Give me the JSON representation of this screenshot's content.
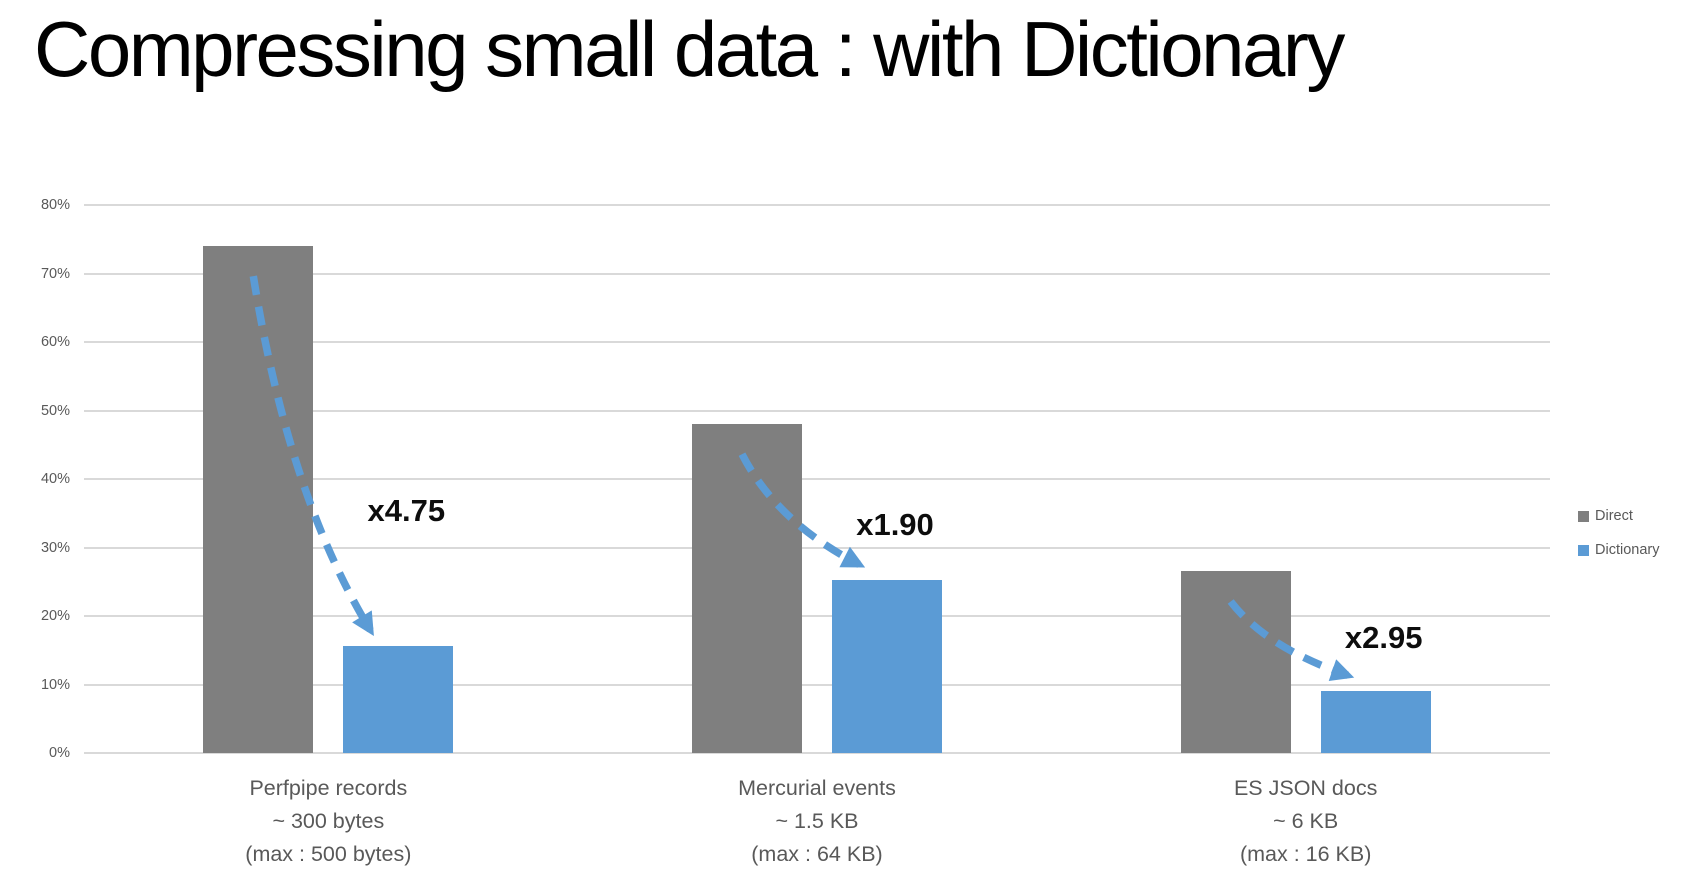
{
  "title": "Compressing small data : with Dictionary",
  "colors": {
    "background": "#ffffff",
    "title_text": "#000000",
    "gridline": "#d9d9d9",
    "axis_text": "#595959",
    "category_text": "#595959",
    "annotation_text": "#0d0d0d",
    "legend_text": "#595959",
    "direct_bar": "#7f7f7f",
    "dictionary_bar": "#5b9bd5",
    "arrow": "#5b9bd5"
  },
  "legend": {
    "position": "right",
    "items": [
      {
        "label": "Direct",
        "color": "#7f7f7f"
      },
      {
        "label": "Dictionary",
        "color": "#5b9bd5"
      }
    ]
  },
  "chart_data": {
    "type": "bar",
    "title": "Compressing small data : with Dictionary",
    "xlabel": "",
    "ylabel": "",
    "grid": true,
    "legend_position": "right",
    "ylim": [
      0,
      80
    ],
    "y_step": 10,
    "y_tick_labels": [
      "0%",
      "10%",
      "20%",
      "30%",
      "40%",
      "50%",
      "60%",
      "70%",
      "80%"
    ],
    "categories": [
      {
        "lines": [
          "Perfpipe records",
          "~ 300 bytes",
          "(max : 500 bytes)"
        ]
      },
      {
        "lines": [
          "Mercurial events",
          "~ 1.5 KB",
          "(max : 64 KB)"
        ]
      },
      {
        "lines": [
          "ES JSON docs",
          "~ 6 KB",
          "(max : 16 KB)"
        ]
      }
    ],
    "series": [
      {
        "name": "Direct",
        "color": "#7f7f7f",
        "values": [
          74,
          48,
          26.5
        ]
      },
      {
        "name": "Dictionary",
        "color": "#5b9bd5",
        "values": [
          15.6,
          25.2,
          9
        ]
      }
    ],
    "annotations": [
      {
        "label": "x4.75",
        "category": 0,
        "y_value": 35.3
      },
      {
        "label": "x1.90",
        "category": 1,
        "y_value": 33.3
      },
      {
        "label": "x2.95",
        "category": 2,
        "y_value": 16.8
      }
    ]
  }
}
